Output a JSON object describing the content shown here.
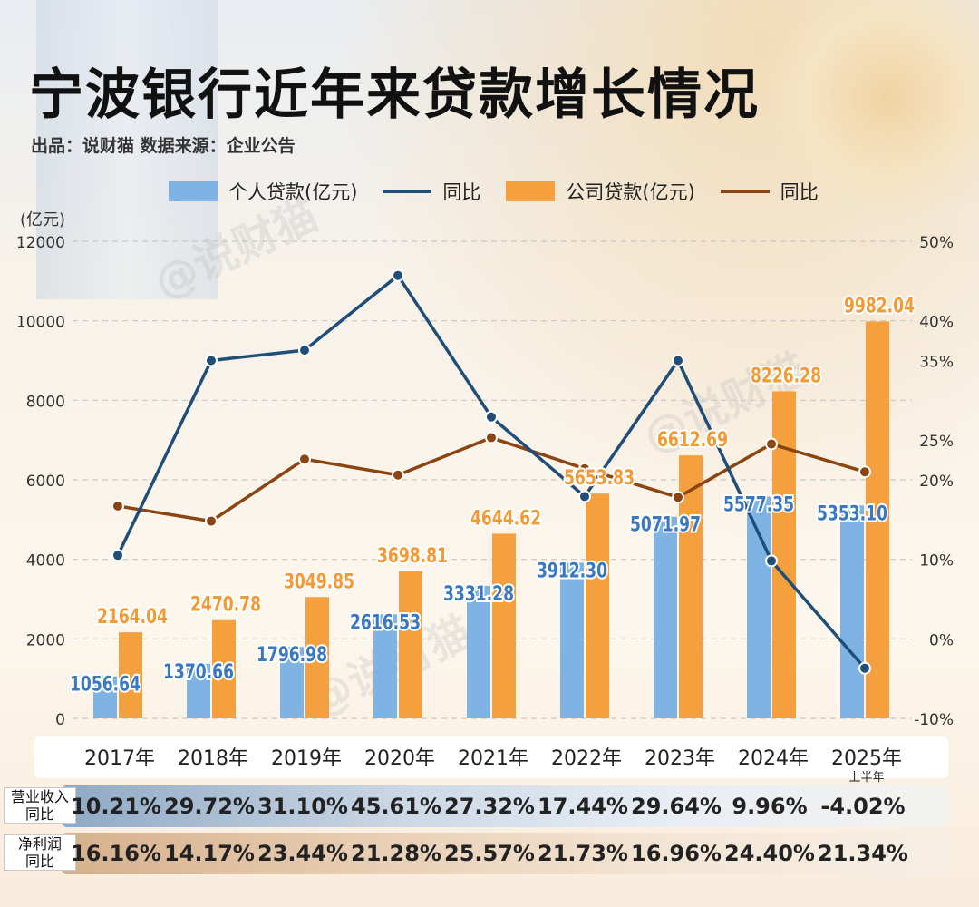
{
  "title": "宁波银行近年来贷款增长情况",
  "subtitle": "出品：说财猫  数据来源：企业公告",
  "watermark": "@说财猫",
  "colors": {
    "personal": "#7eb3e3",
    "corporate": "#f5a03f",
    "personal_yoy": "#1f4e79",
    "corporate_yoy": "#8b4513"
  },
  "legend": [
    {
      "label": "个人贷款(亿元)",
      "kind": "bar",
      "color": "#7eb3e3"
    },
    {
      "label": "同比",
      "kind": "line",
      "color": "#1f4e79"
    },
    {
      "label": "公司贷款(亿元)",
      "kind": "bar",
      "color": "#f5a03f"
    },
    {
      "label": "同比",
      "kind": "line",
      "color": "#8b4513"
    }
  ],
  "chart_data": {
    "type": "bar",
    "categories": [
      "2017年",
      "2018年",
      "2019年",
      "2020年",
      "2021年",
      "2022年",
      "2023年",
      "2024年",
      "2025年"
    ],
    "category_sub": [
      "",
      "",
      "",
      "",
      "",
      "",
      "",
      "",
      "上半年"
    ],
    "y_unit": "(亿元)",
    "ylim": [
      0,
      12000
    ],
    "y_ticks": [
      "0",
      "2000",
      "4000",
      "6000",
      "8000",
      "10000",
      "12000"
    ],
    "y2lim": [
      -10,
      50
    ],
    "y2_ticks": [
      "-10%",
      "0%",
      "10%",
      "20%",
      "25%",
      "35%",
      "40%",
      "50%"
    ],
    "y2_tick_values": [
      -10,
      0,
      10,
      20,
      25,
      35,
      40,
      50
    ],
    "grid": true,
    "series": [
      {
        "name": "个人贷款(亿元)",
        "type": "bar",
        "values": [
          1056.64,
          1370.66,
          1796.98,
          2616.53,
          3331.28,
          3912.3,
          5071.97,
          5577.35,
          5353.1
        ],
        "labels": [
          "1056.64",
          "1370.66",
          "1796.98",
          "2616.53",
          "3331.28",
          "3912.30",
          "5071.97",
          "5577.35",
          "5353.10"
        ]
      },
      {
        "name": "公司贷款(亿元)",
        "type": "bar",
        "values": [
          2164.04,
          2470.78,
          3049.85,
          3698.81,
          4644.62,
          5653.83,
          6612.69,
          8226.28,
          9982.04
        ],
        "labels": [
          "2164.04",
          "2470.78",
          "3049.85",
          "3698.81",
          "4644.62",
          "5653.83",
          "6612.69",
          "8226.28",
          "9982.04"
        ]
      },
      {
        "name": "同比",
        "type": "line",
        "axis": "right",
        "values": [
          10.5,
          35.0,
          36.3,
          45.7,
          27.9,
          17.9,
          35.0,
          9.8,
          -3.7
        ]
      },
      {
        "name": "同比",
        "type": "line",
        "axis": "right",
        "values": [
          16.7,
          14.8,
          22.6,
          20.6,
          25.3,
          21.4,
          17.8,
          24.5,
          21.0
        ]
      }
    ]
  },
  "table": {
    "rows": [
      {
        "label": "营业收入\n同比",
        "values": [
          "10.21%",
          "29.72%",
          "31.10%",
          "45.61%",
          "27.32%",
          "17.44%",
          "29.64%",
          "9.96%",
          "-4.02%"
        ]
      },
      {
        "label": "净利润\n同比",
        "values": [
          "16.16%",
          "14.17%",
          "23.44%",
          "21.28%",
          "25.57%",
          "21.73%",
          "16.96%",
          "24.40%",
          "21.34%"
        ]
      }
    ]
  }
}
